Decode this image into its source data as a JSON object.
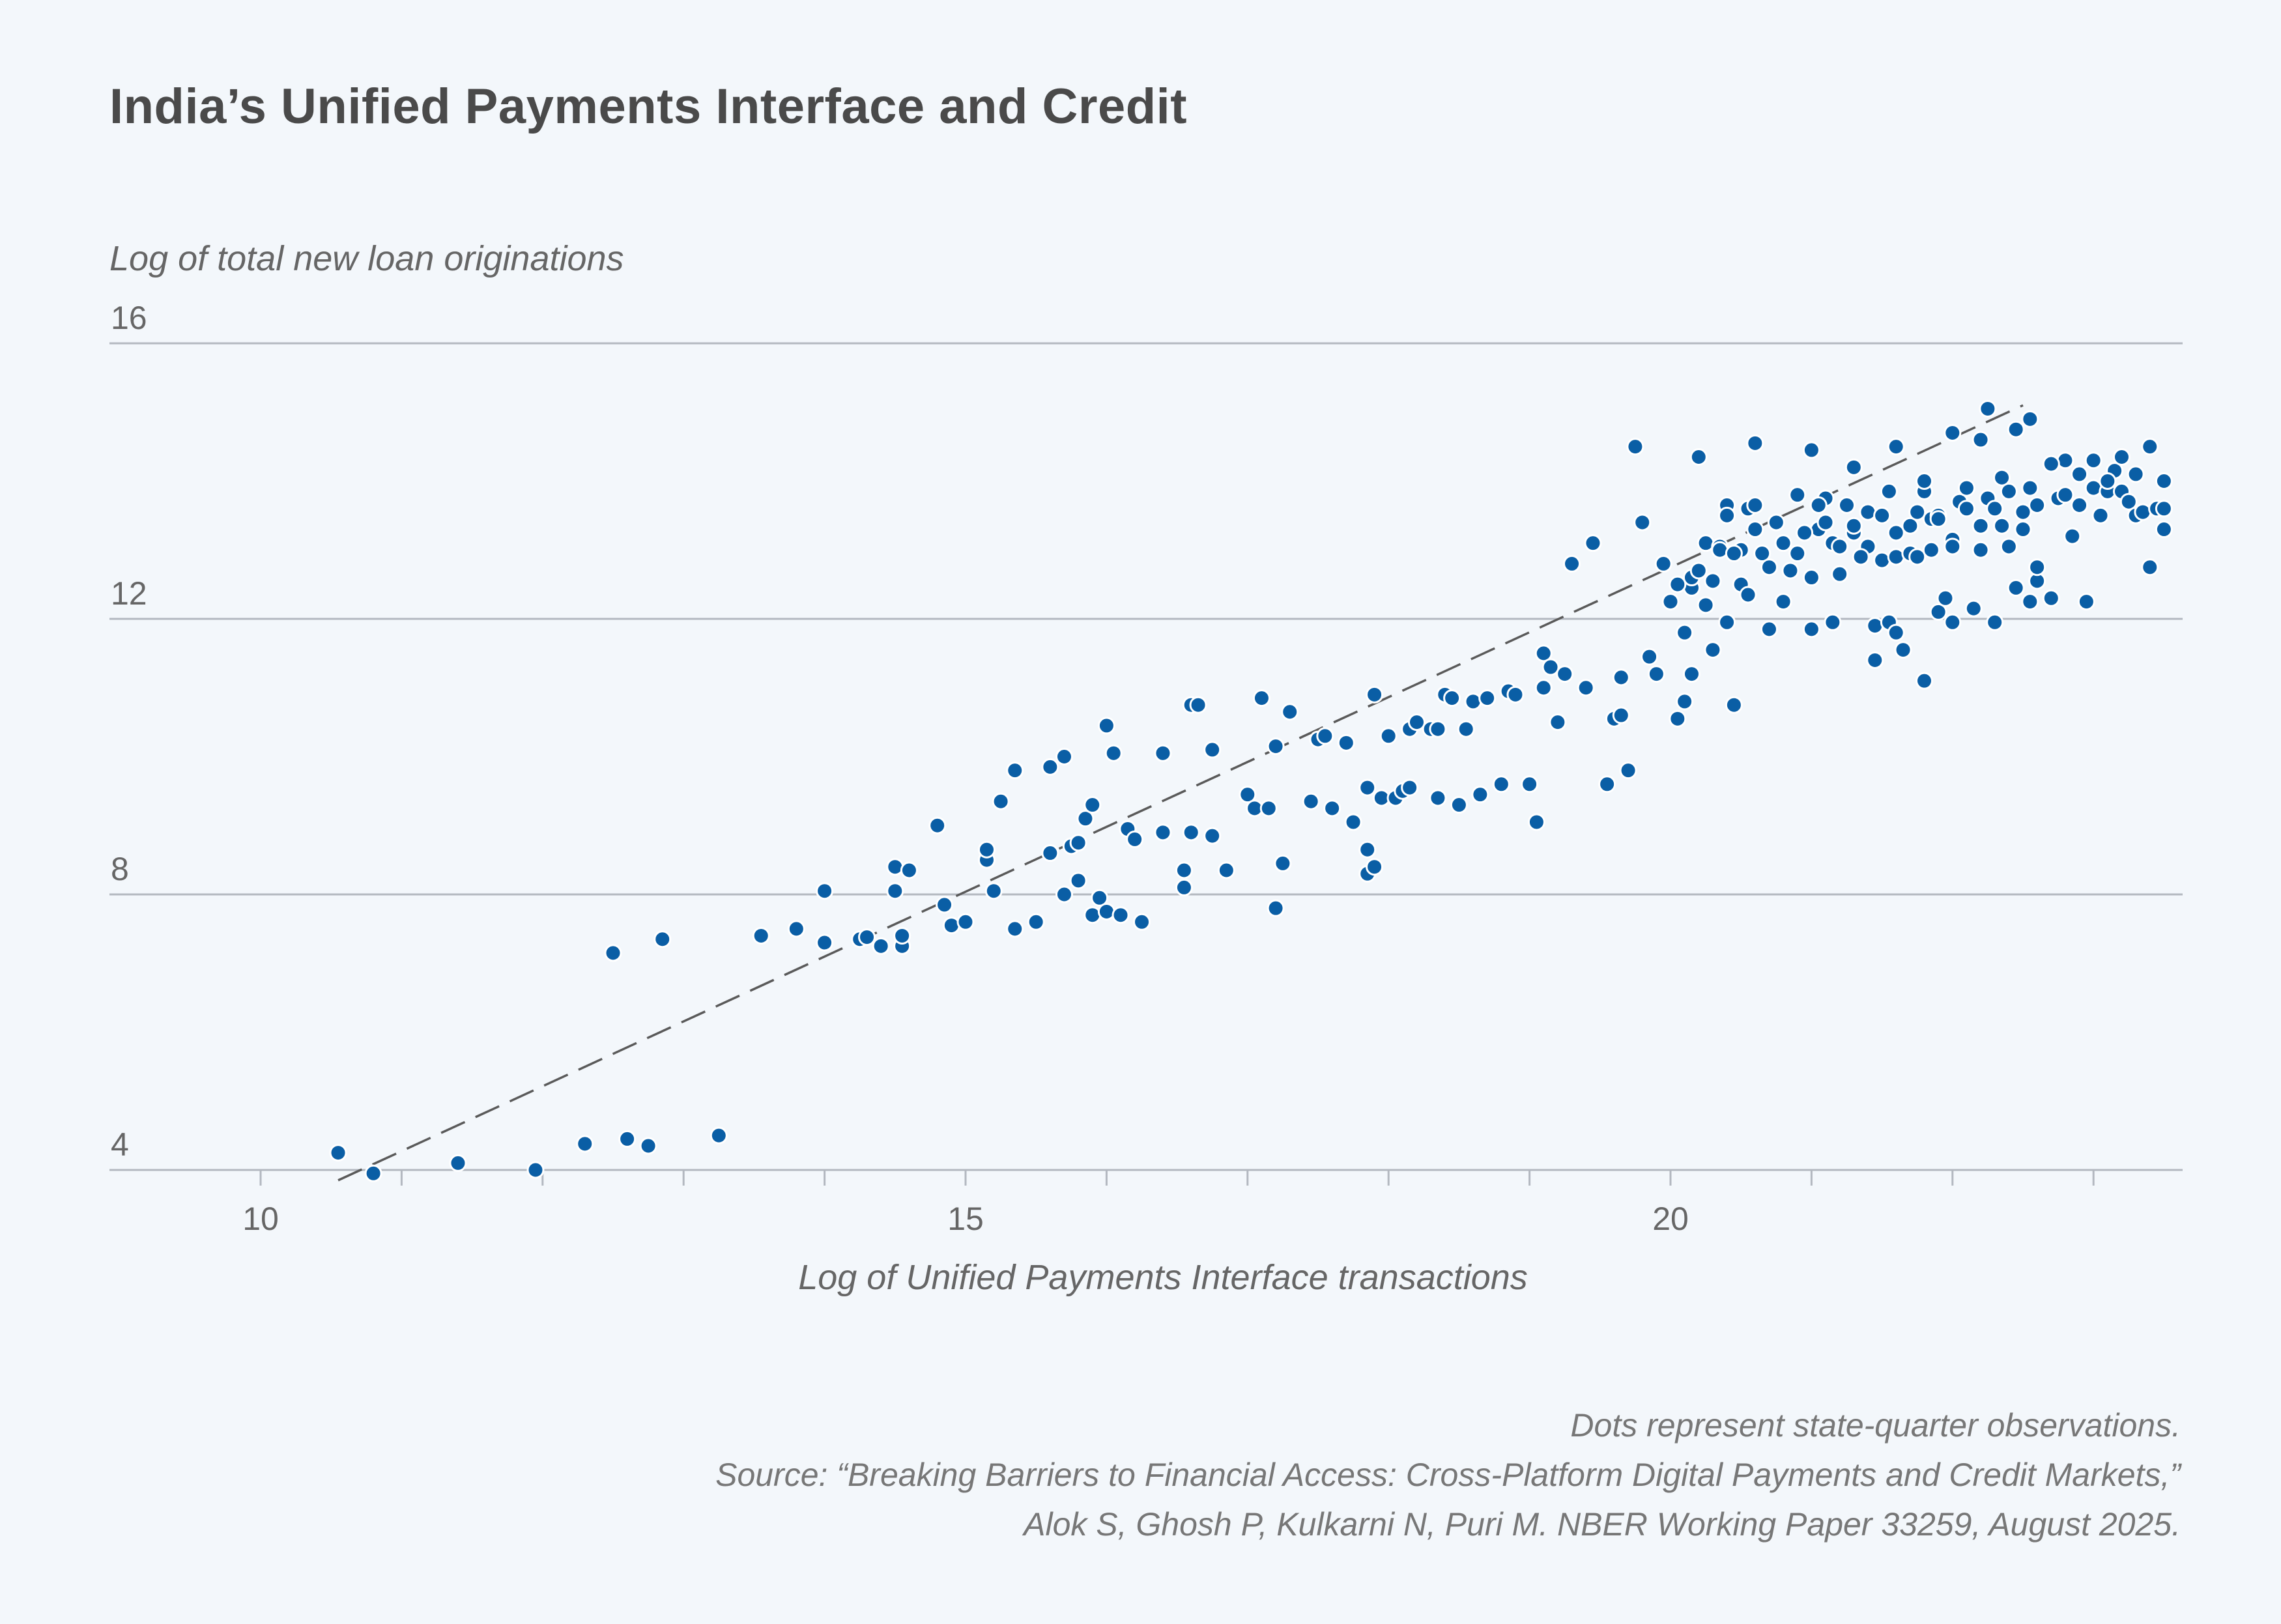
{
  "title": "India’s Unified Payments Interface and Credit",
  "footnotes": {
    "note": "Dots represent state-quarter observations.",
    "source_line1": "Source: “Breaking Barriers to Financial Access: Cross-Platform Digital Payments and Credit Markets,”",
    "source_line2": "Alok S, Ghosh P, Kulkarni N, Puri M. NBER Working Paper 33259, August 2025."
  },
  "colors": {
    "dot": "#0a5ea5",
    "dot_stroke": "#ffffff",
    "grid": "#b3b8c0",
    "trend": "#5a5a5a",
    "axis_text": "#666666"
  },
  "chart_data": {
    "type": "scatter",
    "title": "India’s Unified Payments Interface and Credit",
    "xlabel": "Log of Unified Payments Interface transactions",
    "ylabel": "Log of total new loan originations",
    "xlim": [
      8.95,
      23.6
    ],
    "ylim": [
      4,
      16
    ],
    "x_ticks": [
      10,
      15,
      20
    ],
    "x_minor_ticks": [
      11,
      12,
      13,
      14,
      16,
      17,
      18,
      19,
      21,
      22,
      23
    ],
    "y_ticks": [
      4,
      8,
      12,
      16
    ],
    "grid": "horizontal",
    "trendline": {
      "style": "dashed",
      "x": [
        10.55,
        22.5
      ],
      "y": [
        3.85,
        15.1
      ]
    },
    "points": [
      [
        10.55,
        4.25
      ],
      [
        10.8,
        3.95
      ],
      [
        11.4,
        4.1
      ],
      [
        11.95,
        4.0
      ],
      [
        12.3,
        4.38
      ],
      [
        12.6,
        4.45
      ],
      [
        12.75,
        4.35
      ],
      [
        13.25,
        4.5
      ],
      [
        12.5,
        7.15
      ],
      [
        12.85,
        7.35
      ],
      [
        13.55,
        7.4
      ],
      [
        13.8,
        7.5
      ],
      [
        14.0,
        7.3
      ],
      [
        14.0,
        8.05
      ],
      [
        14.25,
        7.35
      ],
      [
        14.3,
        7.38
      ],
      [
        14.4,
        7.25
      ],
      [
        14.5,
        8.4
      ],
      [
        14.55,
        7.25
      ],
      [
        14.55,
        7.4
      ],
      [
        14.5,
        8.05
      ],
      [
        14.6,
        8.35
      ],
      [
        14.8,
        9.0
      ],
      [
        14.85,
        7.85
      ],
      [
        14.9,
        7.55
      ],
      [
        15.0,
        7.6
      ],
      [
        15.15,
        8.5
      ],
      [
        15.15,
        8.65
      ],
      [
        15.2,
        8.05
      ],
      [
        15.25,
        9.35
      ],
      [
        15.35,
        9.8
      ],
      [
        15.35,
        7.5
      ],
      [
        15.5,
        7.6
      ],
      [
        15.6,
        9.85
      ],
      [
        15.6,
        8.6
      ],
      [
        15.7,
        8.0
      ],
      [
        15.7,
        10.0
      ],
      [
        15.75,
        8.7
      ],
      [
        15.8,
        8.75
      ],
      [
        15.8,
        8.2
      ],
      [
        15.85,
        9.1
      ],
      [
        15.9,
        9.3
      ],
      [
        15.9,
        7.7
      ],
      [
        15.95,
        7.95
      ],
      [
        16.0,
        7.75
      ],
      [
        16.0,
        10.45
      ],
      [
        16.05,
        10.05
      ],
      [
        16.1,
        7.7
      ],
      [
        16.15,
        8.95
      ],
      [
        16.2,
        8.8
      ],
      [
        16.25,
        7.6
      ],
      [
        16.4,
        10.05
      ],
      [
        16.4,
        8.9
      ],
      [
        16.55,
        8.1
      ],
      [
        16.55,
        8.35
      ],
      [
        16.6,
        8.9
      ],
      [
        16.6,
        10.75
      ],
      [
        16.65,
        10.75
      ],
      [
        16.75,
        8.85
      ],
      [
        16.75,
        10.1
      ],
      [
        16.85,
        8.35
      ],
      [
        17.0,
        9.45
      ],
      [
        17.05,
        9.25
      ],
      [
        17.1,
        10.85
      ],
      [
        17.15,
        9.25
      ],
      [
        17.2,
        10.15
      ],
      [
        17.2,
        7.8
      ],
      [
        17.25,
        8.45
      ],
      [
        17.3,
        10.65
      ],
      [
        17.45,
        9.35
      ],
      [
        17.5,
        10.25
      ],
      [
        17.55,
        10.3
      ],
      [
        17.6,
        9.25
      ],
      [
        17.7,
        10.2
      ],
      [
        17.75,
        9.05
      ],
      [
        17.85,
        8.65
      ],
      [
        17.85,
        8.3
      ],
      [
        17.85,
        9.55
      ],
      [
        17.9,
        8.4
      ],
      [
        17.9,
        10.9
      ],
      [
        17.95,
        9.4
      ],
      [
        18.0,
        10.3
      ],
      [
        18.05,
        9.4
      ],
      [
        18.1,
        9.5
      ],
      [
        18.15,
        10.4
      ],
      [
        18.15,
        9.55
      ],
      [
        18.2,
        10.5
      ],
      [
        18.3,
        10.4
      ],
      [
        18.35,
        9.4
      ],
      [
        18.35,
        10.4
      ],
      [
        18.4,
        10.9
      ],
      [
        18.45,
        10.85
      ],
      [
        18.5,
        9.3
      ],
      [
        18.55,
        10.4
      ],
      [
        18.6,
        10.8
      ],
      [
        18.65,
        9.45
      ],
      [
        18.7,
        10.85
      ],
      [
        18.8,
        9.6
      ],
      [
        18.85,
        10.95
      ],
      [
        18.9,
        10.9
      ],
      [
        19.0,
        9.6
      ],
      [
        19.05,
        9.05
      ],
      [
        19.1,
        11.0
      ],
      [
        19.1,
        11.5
      ],
      [
        19.15,
        11.3
      ],
      [
        19.2,
        10.5
      ],
      [
        19.25,
        11.2
      ],
      [
        19.3,
        12.8
      ],
      [
        19.4,
        11.0
      ],
      [
        19.45,
        13.1
      ],
      [
        19.55,
        9.6
      ],
      [
        19.6,
        10.55
      ],
      [
        19.65,
        10.6
      ],
      [
        19.65,
        11.15
      ],
      [
        19.7,
        9.8
      ],
      [
        19.8,
        13.4
      ],
      [
        19.85,
        11.45
      ],
      [
        19.9,
        11.2
      ],
      [
        19.95,
        12.8
      ],
      [
        20.05,
        10.55
      ],
      [
        20.1,
        11.8
      ],
      [
        20.1,
        10.8
      ],
      [
        20.15,
        11.2
      ],
      [
        20.15,
        12.45
      ],
      [
        20.25,
        13.1
      ],
      [
        20.3,
        11.55
      ],
      [
        20.35,
        13.05
      ],
      [
        20.4,
        11.95
      ],
      [
        20.4,
        13.65
      ],
      [
        20.45,
        10.75
      ],
      [
        20.5,
        13.0
      ],
      [
        20.55,
        13.6
      ],
      [
        20.6,
        13.65
      ],
      [
        20.7,
        11.85
      ],
      [
        20.8,
        12.25
      ],
      [
        20.9,
        13.8
      ],
      [
        21.0,
        11.85
      ],
      [
        21.05,
        13.3
      ],
      [
        21.1,
        13.75
      ],
      [
        21.15,
        13.1
      ],
      [
        21.15,
        11.95
      ],
      [
        21.2,
        12.65
      ],
      [
        21.3,
        13.25
      ],
      [
        21.3,
        13.35
      ],
      [
        21.4,
        13.05
      ],
      [
        21.45,
        11.9
      ],
      [
        21.45,
        11.4
      ],
      [
        21.5,
        12.85
      ],
      [
        21.55,
        11.95
      ],
      [
        21.6,
        11.8
      ],
      [
        21.6,
        12.9
      ],
      [
        21.65,
        11.55
      ],
      [
        21.7,
        12.95
      ],
      [
        21.75,
        12.9
      ],
      [
        21.8,
        11.1
      ],
      [
        21.85,
        13.45
      ],
      [
        21.9,
        13.5
      ],
      [
        21.9,
        12.1
      ],
      [
        21.95,
        12.3
      ],
      [
        22.0,
        13.15
      ],
      [
        22.0,
        11.95
      ],
      [
        22.05,
        13.7
      ],
      [
        22.1,
        13.6
      ],
      [
        22.15,
        12.15
      ],
      [
        22.2,
        13.35
      ],
      [
        22.25,
        13.75
      ],
      [
        22.3,
        11.95
      ],
      [
        22.35,
        13.35
      ],
      [
        22.4,
        13.05
      ],
      [
        22.45,
        12.45
      ],
      [
        22.5,
        13.3
      ],
      [
        22.55,
        12.25
      ],
      [
        22.6,
        13.65
      ],
      [
        22.6,
        12.55
      ],
      [
        22.7,
        12.3
      ],
      [
        22.75,
        13.75
      ],
      [
        22.8,
        14.3
      ],
      [
        22.85,
        13.2
      ],
      [
        22.9,
        13.65
      ],
      [
        22.95,
        12.25
      ],
      [
        23.0,
        13.9
      ],
      [
        23.05,
        13.5
      ],
      [
        23.1,
        13.85
      ],
      [
        23.15,
        14.15
      ],
      [
        23.2,
        13.85
      ],
      [
        23.25,
        13.7
      ],
      [
        23.3,
        13.5
      ],
      [
        23.35,
        13.55
      ],
      [
        23.4,
        12.75
      ],
      [
        23.45,
        13.6
      ],
      [
        23.5,
        13.3
      ],
      [
        23.5,
        13.6
      ],
      [
        20.0,
        12.25
      ],
      [
        20.05,
        12.5
      ],
      [
        20.15,
        12.6
      ],
      [
        20.2,
        12.7
      ],
      [
        20.25,
        12.2
      ],
      [
        20.3,
        12.55
      ],
      [
        20.35,
        13.0
      ],
      [
        20.4,
        13.5
      ],
      [
        20.45,
        12.95
      ],
      [
        20.5,
        12.5
      ],
      [
        20.55,
        12.35
      ],
      [
        20.6,
        13.3
      ],
      [
        20.65,
        12.95
      ],
      [
        20.7,
        12.75
      ],
      [
        20.75,
        13.4
      ],
      [
        20.8,
        13.1
      ],
      [
        20.85,
        12.7
      ],
      [
        20.9,
        12.95
      ],
      [
        20.95,
        13.25
      ],
      [
        21.0,
        12.6
      ],
      [
        21.05,
        13.65
      ],
      [
        21.1,
        13.4
      ],
      [
        21.2,
        13.05
      ],
      [
        21.25,
        13.65
      ],
      [
        21.35,
        12.9
      ],
      [
        21.4,
        13.55
      ],
      [
        21.5,
        13.5
      ],
      [
        21.55,
        13.85
      ],
      [
        21.6,
        13.25
      ],
      [
        21.7,
        13.35
      ],
      [
        21.75,
        13.55
      ],
      [
        21.8,
        13.85
      ],
      [
        21.85,
        13.0
      ],
      [
        21.9,
        13.45
      ],
      [
        22.0,
        13.05
      ],
      [
        22.1,
        13.9
      ],
      [
        22.2,
        13.0
      ],
      [
        22.3,
        13.6
      ],
      [
        22.4,
        13.85
      ],
      [
        22.5,
        13.55
      ],
      [
        22.55,
        13.9
      ],
      [
        22.6,
        12.75
      ],
      [
        22.7,
        14.25
      ],
      [
        22.8,
        13.8
      ],
      [
        22.9,
        14.1
      ],
      [
        23.0,
        14.3
      ],
      [
        23.1,
        14.0
      ],
      [
        23.2,
        14.35
      ],
      [
        23.3,
        14.1
      ],
      [
        23.4,
        14.5
      ],
      [
        23.5,
        14.0
      ],
      [
        22.0,
        14.7
      ],
      [
        21.3,
        14.2
      ],
      [
        21.8,
        14.0
      ],
      [
        22.35,
        14.05
      ],
      [
        21.6,
        14.5
      ],
      [
        20.6,
        14.55
      ],
      [
        21.0,
        14.45
      ],
      [
        20.2,
        14.35
      ],
      [
        19.75,
        14.5
      ],
      [
        22.25,
        15.05
      ],
      [
        22.45,
        14.75
      ],
      [
        22.55,
        14.9
      ],
      [
        22.2,
        14.6
      ]
    ]
  }
}
